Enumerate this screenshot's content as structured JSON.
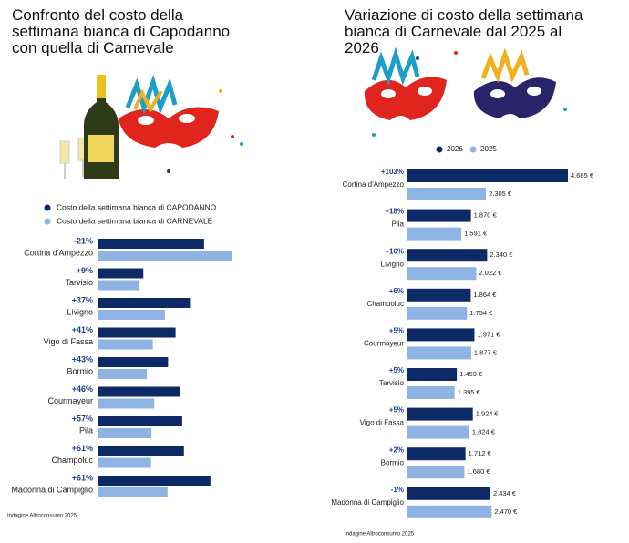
{
  "chart_data": [
    {
      "type": "bar",
      "orientation": "horizontal",
      "title": "Confronto del costo della settimana bianca di Capodanno con quella di Carnevale",
      "categories": [
        "Cortina d'Ampezzo",
        "Tarvisio",
        "Livigno",
        "Vigo di Fassa",
        "Bormio",
        "Courmayeur",
        "Pila",
        "Champoluc",
        "Madonna di Campiglio"
      ],
      "annotations": [
        "-21%",
        "+9%",
        "+37%",
        "+41%",
        "+43%",
        "+46%",
        "+57%",
        "+61%",
        "+61%"
      ],
      "series": [
        {
          "name": "Costo della settimana bianca di CAPODANNO",
          "color": "#0d2a66",
          "values": [
            3700,
            1590,
            3210,
            2710,
            2450,
            2880,
            2940,
            3000,
            3920
          ]
        },
        {
          "name": "Costo della settimana bianca di CARNEVALE",
          "color": "#8fb3e3",
          "values": [
            4685,
            1460,
            2340,
            1920,
            1710,
            1970,
            1870,
            1860,
            2430
          ]
        }
      ],
      "source": "Indagine Altroconsumo 2025"
    },
    {
      "type": "bar",
      "orientation": "horizontal",
      "title": "Variazione di costo della settimana bianca di Carnevale dal 2025 al 2026",
      "categories": [
        "Cortina d'Ampezzo",
        "Pila",
        "Livigno",
        "Champoluc",
        "Courmayeur",
        "Tarvisio",
        "Vigo di Fassa",
        "Bormio",
        "Madonna di Campiglio"
      ],
      "annotations": [
        "+103%",
        "+18%",
        "+16%",
        "+6%",
        "+5%",
        "+5%",
        "+5%",
        "+2%",
        "-1%"
      ],
      "series": [
        {
          "name": "2026",
          "color": "#0d2a66",
          "values": [
            4685,
            1870,
            2340,
            1864,
            1971,
            1459,
            1924,
            1712,
            2434
          ],
          "value_labels": [
            "4.685 €",
            "1.870 €",
            "2.340 €",
            "1.864 €",
            "1.971 €",
            "1.459 €",
            "1.924 €",
            "1.712 €",
            "2.434 €"
          ]
        },
        {
          "name": "2025",
          "color": "#8fb3e3",
          "values": [
            2305,
            1591,
            2022,
            1754,
            1877,
            1395,
            1824,
            1680,
            2470
          ],
          "value_labels": [
            "2.305 €",
            "1.591 €",
            "2.022 €",
            "1.754 €",
            "1.877 €",
            "1.395 €",
            "1.824 €",
            "1.680 €",
            "2.470 €"
          ]
        }
      ],
      "source": "Indagine Altroconsumo 2025"
    }
  ]
}
